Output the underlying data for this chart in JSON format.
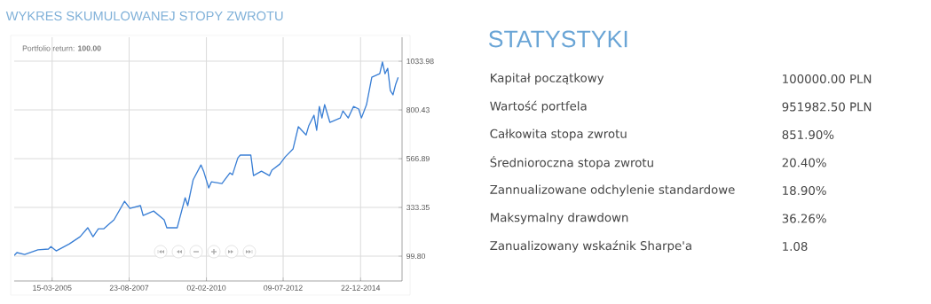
{
  "chart_data": [
    {
      "type": "line",
      "title": "WYKRES SKUMULOWANEJ STOPY ZWROTU",
      "annotations": [
        "Portfolio return: **100.00**"
      ],
      "x": [
        "2004-01",
        "2004-02",
        "2004-05",
        "2004-10",
        "2005-02",
        "2005-03",
        "2005-05",
        "2005-10",
        "2006-02",
        "2006-05",
        "2006-07",
        "2006-09",
        "2006-11",
        "2007-03",
        "2007-07",
        "2007-09",
        "2008-01",
        "2008-02",
        "2008-06",
        "2008-10",
        "2008-11",
        "2009-03",
        "2009-06",
        "2009-07",
        "2009-09",
        "2009-12",
        "2010-01",
        "2010-03",
        "2010-04",
        "2010-08",
        "2010-11",
        "2010-12",
        "2011-02",
        "2011-03",
        "2011-07",
        "2011-08",
        "2011-11",
        "2012-02",
        "2012-03",
        "2012-06",
        "2012-08",
        "2012-11",
        "2013-01",
        "2013-04",
        "2013-05",
        "2013-07",
        "2013-08",
        "2013-09",
        "2013-10",
        "2013-11",
        "2014-01",
        "2014-05",
        "2014-06",
        "2014-08",
        "2014-10",
        "2014-12",
        "2015-01",
        "2015-03",
        "2015-05",
        "2015-08",
        "2015-09",
        "2015-10",
        "2015-11",
        "2015-12",
        "2016-01",
        "2016-02",
        "2016-03"
      ],
      "series": [
        {
          "color": "#3a7fd5",
          "values": [
            103,
            117,
            108,
            130,
            134,
            146,
            125,
            159,
            193,
            236,
            193,
            231,
            231,
            274,
            363,
            329,
            342,
            295,
            316,
            274,
            236,
            236,
            380,
            342,
            465,
            537,
            507,
            427,
            456,
            448,
            499,
            490,
            571,
            584,
            584,
            486,
            507,
            486,
            512,
            541,
            575,
            614,
            720,
            681,
            724,
            775,
            703,
            817,
            762,
            826,
            741,
            762,
            796,
            762,
            817,
            805,
            762,
            826,
            957,
            974,
            1030,
            974,
            1000,
            894,
            873,
            923,
            957
          ]
        }
      ],
      "xlim": [
        "2004-01-01",
        "2016-04-15"
      ],
      "xticks": [
        {
          "value": "2005-03-15",
          "label": "15-03-2005"
        },
        {
          "value": "2007-08-23",
          "label": "23-08-2007"
        },
        {
          "value": "2010-02-02",
          "label": "02-02-2010"
        },
        {
          "value": "2012-07-09",
          "label": "09-07-2012"
        },
        {
          "value": "2014-12-22",
          "label": "22-12-2014"
        }
      ],
      "ylim": [
        -19,
        1149
      ],
      "yticks": [
        {
          "value": 99.8,
          "label": "99.80"
        },
        {
          "value": 333.35,
          "label": "333.35"
        },
        {
          "value": 566.89,
          "label": "566.89"
        },
        {
          "value": 800.43,
          "label": "800.43"
        },
        {
          "value": 1033.98,
          "label": "1033.98"
        }
      ],
      "grid": true,
      "marker": "none",
      "line_style": "solid"
    },
    {
      "type": "other",
      "title": "STATYSTYKI",
      "annotations": [
        "Kapitał początkowy",
        "100000.00 PLN",
        "Wartość portfela",
        "951982.50 PLN",
        "Całkowita stopa zwrotu",
        "851.90%",
        "Średnioroczna stopa zwrotu",
        "20.40%",
        "Zannualizowane odchylenie standardowe",
        "18.90%",
        "Maksymalny drawdown",
        "36.26%",
        "Zanualizowany wskaźnik Sharpe'a",
        "1.08"
      ]
    }
  ]
}
